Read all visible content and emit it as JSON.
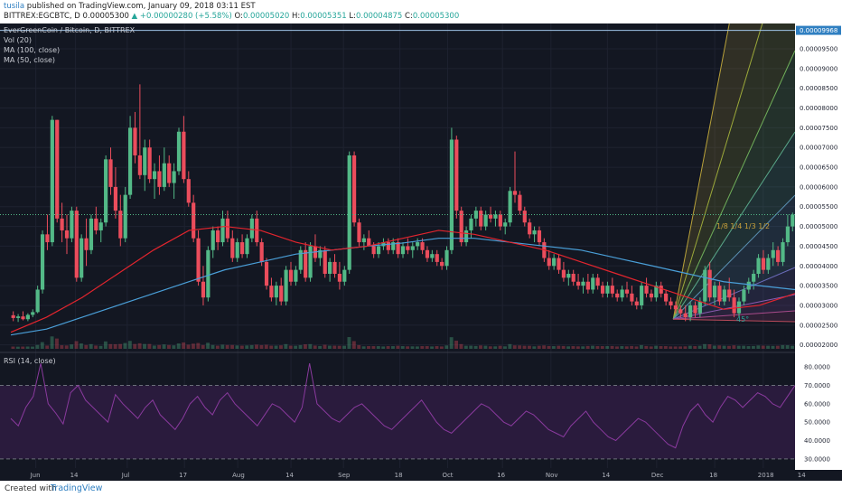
{
  "header": {
    "user": "tusila",
    "published": "published on TradingView.com, January 09, 2018 03:11 EST",
    "symbol": "BITTREX:EGCBTC, D",
    "open_value": "0.00005300",
    "change": "▲ +0.00000280 (+5.58%)",
    "o_label": "O:",
    "o_value": "0.00005020",
    "h_label": "H:",
    "h_value": "0.00005351",
    "l_label": "L:",
    "l_value": "0.00004875",
    "c_label": "C:",
    "c_value": "0.00005300"
  },
  "legend": {
    "pair": "EverGreenCoin / Bitcoin, D, BITTREX",
    "vol": "Vol (20)",
    "ma100": "MA (100, close)",
    "ma50": "MA (50, close)",
    "rsi": "RSI (14, close)"
  },
  "fan_labels": {
    "ratios": "1/8 1/4 1/3 1/2",
    "angle": "45°"
  },
  "footer": {
    "created": "Created with",
    "brand": "TradingView"
  },
  "colors": {
    "background": "#131722",
    "up": "#53b987",
    "down": "#eb4d5c",
    "ma100": "#4a9fd8",
    "ma50": "#e3252e",
    "rsi": "#8a3a9e",
    "volume_ma": "#c8c46c",
    "price_label": "#2f7fc1"
  },
  "chart_data": {
    "type": "candlestick",
    "title": "EverGreenCoin / Bitcoin, D, BITTREX",
    "price_axis": {
      "min": 1.9e-05,
      "max": 0.0001005,
      "ticks": [
        "0.00009500",
        "0.00009000",
        "0.00008500",
        "0.00008000",
        "0.00007500",
        "0.00007000",
        "0.00006500",
        "0.00006000",
        "0.00005500",
        "0.00005000",
        "0.00004500",
        "0.00004000",
        "0.00003500",
        "0.00003000",
        "0.00002500",
        "0.00002000"
      ],
      "tick_values": [
        9.5e-05,
        9e-05,
        8.5e-05,
        8e-05,
        7.5e-05,
        7e-05,
        6.5e-05,
        6e-05,
        5.5e-05,
        5e-05,
        4.5e-05,
        4e-05,
        3.5e-05,
        3e-05,
        2.5e-05,
        2e-05
      ]
    },
    "price_marker": {
      "label": "0.00009968",
      "value": 9.968e-05
    },
    "last_price": 5.3e-05,
    "rsi_axis": {
      "min": 25,
      "max": 85,
      "ticks": [
        "80.0000",
        "70.0000",
        "60.0000",
        "50.0000",
        "40.0000",
        "30.0000"
      ],
      "tick_values": [
        80,
        70,
        60,
        50,
        40,
        30
      ],
      "bands": [
        70,
        30
      ]
    },
    "time_axis": [
      "Jun",
      "14",
      "Jul",
      "17",
      "Aug",
      "14",
      "Sep",
      "18",
      "Oct",
      "16",
      "Nov",
      "14",
      "Dec",
      "18",
      "2018",
      "14"
    ],
    "time_positions": [
      0.045,
      0.095,
      0.16,
      0.232,
      0.299,
      0.366,
      0.432,
      0.503,
      0.563,
      0.632,
      0.693,
      0.764,
      0.826,
      0.899,
      0.96,
      1.01
    ],
    "candles": [
      [
        2.75e-05,
        2.85e-05,
        2.6e-05,
        2.68e-05
      ],
      [
        2.68e-05,
        2.78e-05,
        2.58e-05,
        2.72e-05
      ],
      [
        2.72e-05,
        2.85e-05,
        2.62e-05,
        2.65e-05
      ],
      [
        2.65e-05,
        2.8e-05,
        2.6e-05,
        2.76e-05
      ],
      [
        2.76e-05,
        2.9e-05,
        2.7e-05,
        2.83e-05
      ],
      [
        2.83e-05,
        3.5e-05,
        2.8e-05,
        3.4e-05
      ],
      [
        3.4e-05,
        4.9e-05,
        3.3e-05,
        4.8e-05
      ],
      [
        4.8e-05,
        5.3e-05,
        4.4e-05,
        4.6e-05
      ],
      [
        4.6e-05,
        7.8e-05,
        4.5e-05,
        7.7e-05
      ],
      [
        7.7e-05,
        7.7e-05,
        5.1e-05,
        5.2e-05
      ],
      [
        5.2e-05,
        5.6e-05,
        4.6e-05,
        4.9e-05
      ],
      [
        4.9e-05,
        5.3e-05,
        4.3e-05,
        4.7e-05
      ],
      [
        4.7e-05,
        5.5e-05,
        4.6e-05,
        5.4e-05
      ],
      [
        5.4e-05,
        5.5e-05,
        3.6e-05,
        3.7e-05
      ],
      [
        3.7e-05,
        4.8e-05,
        3.6e-05,
        4.7e-05
      ],
      [
        4.7e-05,
        5.2e-05,
        4e-05,
        4.4e-05
      ],
      [
        4.4e-05,
        5.3e-05,
        4.3e-05,
        5.2e-05
      ],
      [
        5.2e-05,
        5.5e-05,
        4.8e-05,
        4.9e-05
      ],
      [
        4.9e-05,
        5.2e-05,
        4.6e-05,
        5.1e-05
      ],
      [
        5.1e-05,
        6.8e-05,
        5e-05,
        6.7e-05
      ],
      [
        6.7e-05,
        7e-05,
        5.8e-05,
        6e-05
      ],
      [
        6e-05,
        6.5e-05,
        5.2e-05,
        5.4e-05
      ],
      [
        5.4e-05,
        5.8e-05,
        4.5e-05,
        4.7e-05
      ],
      [
        4.7e-05,
        6e-05,
        4.6e-05,
        5.8e-05
      ],
      [
        5.8e-05,
        7.8e-05,
        5.7e-05,
        7.5e-05
      ],
      [
        7.5e-05,
        7.9e-05,
        6.6e-05,
        6.8e-05
      ],
      [
        6.8e-05,
        8.6e-05,
        6.2e-05,
        6.3e-05
      ],
      [
        6.3e-05,
        7.2e-05,
        5.9e-05,
        7e-05
      ],
      [
        7e-05,
        7.2e-05,
        6.1e-05,
        6.2e-05
      ],
      [
        6.2e-05,
        6.6e-05,
        5.7e-05,
        6.4e-05
      ],
      [
        6.4e-05,
        6.8e-05,
        5.8e-05,
        6e-05
      ],
      [
        6e-05,
        7e-05,
        5.9e-05,
        6.6e-05
      ],
      [
        6.6e-05,
        6.8e-05,
        6e-05,
        6.1e-05
      ],
      [
        6.1e-05,
        6.6e-05,
        5.7e-05,
        6.4e-05
      ],
      [
        6.4e-05,
        7.5e-05,
        6.3e-05,
        7.4e-05
      ],
      [
        7.4e-05,
        7.8e-05,
        6.1e-05,
        6.2e-05
      ],
      [
        6.2e-05,
        6.4e-05,
        5.5e-05,
        5.6e-05
      ],
      [
        5.6e-05,
        5.8e-05,
        4.6e-05,
        4.7e-05
      ],
      [
        4.7e-05,
        4.9e-05,
        3.5e-05,
        3.6e-05
      ],
      [
        3.6e-05,
        4e-05,
        3e-05,
        3.2e-05
      ],
      [
        3.2e-05,
        4.5e-05,
        3.1e-05,
        4.4e-05
      ],
      [
        4.4e-05,
        5e-05,
        4.2e-05,
        4.9e-05
      ],
      [
        4.9e-05,
        5e-05,
        4.4e-05,
        4.6e-05
      ],
      [
        4.6e-05,
        5.4e-05,
        4.5e-05,
        5.2e-05
      ],
      [
        5.2e-05,
        5.4e-05,
        4.6e-05,
        4.7e-05
      ],
      [
        4.7e-05,
        4.9e-05,
        4.1e-05,
        4.2e-05
      ],
      [
        4.2e-05,
        4.7e-05,
        4.1e-05,
        4.6e-05
      ],
      [
        4.6e-05,
        4.8e-05,
        4.2e-05,
        4.3e-05
      ],
      [
        4.3e-05,
        4.8e-05,
        4.2e-05,
        4.7e-05
      ],
      [
        4.7e-05,
        5.3e-05,
        4.6e-05,
        5.2e-05
      ],
      [
        5.2e-05,
        5.4e-05,
        4.5e-05,
        4.6e-05
      ],
      [
        4.6e-05,
        4.7e-05,
        4e-05,
        4.1e-05
      ],
      [
        4.1e-05,
        4.2e-05,
        3.4e-05,
        3.5e-05
      ],
      [
        3.5e-05,
        3.7e-05,
        3.1e-05,
        3.2e-05
      ],
      [
        3.2e-05,
        3.6e-05,
        3e-05,
        3.5e-05
      ],
      [
        3.5e-05,
        3.7e-05,
        3e-05,
        3.1e-05
      ],
      [
        3.1e-05,
        4e-05,
        3e-05,
        3.9e-05
      ],
      [
        3.9e-05,
        4.1e-05,
        3.5e-05,
        3.6e-05
      ],
      [
        3.6e-05,
        4e-05,
        3.5e-05,
        3.9e-05
      ],
      [
        3.9e-05,
        4.5e-05,
        3.8e-05,
        4.4e-05
      ],
      [
        4.4e-05,
        4.6e-05,
        3.6e-05,
        3.7e-05
      ],
      [
        3.7e-05,
        4.6e-05,
        3.6e-05,
        4.5e-05
      ],
      [
        4.5e-05,
        4.8e-05,
        4.1e-05,
        4.2e-05
      ],
      [
        4.2e-05,
        4.5e-05,
        4e-05,
        4.4e-05
      ],
      [
        4.4e-05,
        4.5e-05,
        3.7e-05,
        3.8e-05
      ],
      [
        3.8e-05,
        4.2e-05,
        3.6e-05,
        4.1e-05
      ],
      [
        4.1e-05,
        4.3e-05,
        3.7e-05,
        3.8e-05
      ],
      [
        3.8e-05,
        4.1e-05,
        3.4e-05,
        3.6e-05
      ],
      [
        3.6e-05,
        4e-05,
        3.5e-05,
        3.9e-05
      ],
      [
        3.9e-05,
        6.9e-05,
        3.8e-05,
        6.8e-05
      ],
      [
        6.8e-05,
        6.9e-05,
        5e-05,
        5.1e-05
      ],
      [
        5.1e-05,
        5.2e-05,
        4.5e-05,
        4.6e-05
      ],
      [
        4.6e-05,
        4.8e-05,
        4.4e-05,
        4.7e-05
      ],
      [
        4.7e-05,
        4.9e-05,
        4.5e-05,
        4.5e-05
      ],
      [
        4.5e-05,
        4.6e-05,
        4.2e-05,
        4.3e-05
      ],
      [
        4.3e-05,
        4.6e-05,
        4.2e-05,
        4.5e-05
      ],
      [
        4.5e-05,
        4.7e-05,
        4.4e-05,
        4.6e-05
      ],
      [
        4.6e-05,
        4.7e-05,
        4.3e-05,
        4.4e-05
      ],
      [
        4.4e-05,
        4.7e-05,
        4.3e-05,
        4.6e-05
      ],
      [
        4.6e-05,
        4.7e-05,
        4.2e-05,
        4.3e-05
      ],
      [
        4.3e-05,
        4.6e-05,
        4.2e-05,
        4.5e-05
      ],
      [
        4.5e-05,
        4.7e-05,
        4.3e-05,
        4.4e-05
      ],
      [
        4.4e-05,
        4.6e-05,
        4.2e-05,
        4.5e-05
      ],
      [
        4.5e-05,
        4.7e-05,
        4.4e-05,
        4.6e-05
      ],
      [
        4.6e-05,
        4.7e-05,
        4.3e-05,
        4.4e-05
      ],
      [
        4.4e-05,
        4.5e-05,
        4.1e-05,
        4.2e-05
      ],
      [
        4.2e-05,
        4.4e-05,
        4.1e-05,
        4.3e-05
      ],
      [
        4.3e-05,
        4.4e-05,
        4e-05,
        4.1e-05
      ],
      [
        4.1e-05,
        4.2e-05,
        3.9e-05,
        4e-05
      ],
      [
        4e-05,
        4.5e-05,
        3.9e-05,
        4.4e-05
      ],
      [
        4.4e-05,
        7.5e-05,
        4.3e-05,
        7.2e-05
      ],
      [
        7.2e-05,
        7.3e-05,
        5.2e-05,
        5.4e-05
      ],
      [
        5.4e-05,
        5.5e-05,
        4.5e-05,
        4.6e-05
      ],
      [
        4.6e-05,
        5e-05,
        4.5e-05,
        4.9e-05
      ],
      [
        4.9e-05,
        5.3e-05,
        4.7e-05,
        5.2e-05
      ],
      [
        5.2e-05,
        5.5e-05,
        5e-05,
        5.4e-05
      ],
      [
        5.4e-05,
        5.5e-05,
        4.9e-05,
        5e-05
      ],
      [
        5e-05,
        5.4e-05,
        4.9e-05,
        5.3e-05
      ],
      [
        5.3e-05,
        5.5e-05,
        5.1e-05,
        5.2e-05
      ],
      [
        5.2e-05,
        5.4e-05,
        5e-05,
        5.3e-05
      ],
      [
        5.3e-05,
        5.4e-05,
        4.9e-05,
        5e-05
      ],
      [
        5e-05,
        5.2e-05,
        4.8e-05,
        5.1e-05
      ],
      [
        5.1e-05,
        6e-05,
        5e-05,
        5.9e-05
      ],
      [
        5.9e-05,
        6.9e-05,
        5.6e-05,
        5.8e-05
      ],
      [
        5.8e-05,
        5.9e-05,
        5.3e-05,
        5.4e-05
      ],
      [
        5.4e-05,
        5.5e-05,
        5e-05,
        5.1e-05
      ],
      [
        5.1e-05,
        5.2e-05,
        4.7e-05,
        4.8e-05
      ],
      [
        4.8e-05,
        5e-05,
        4.6e-05,
        4.9e-05
      ],
      [
        4.9e-05,
        5e-05,
        4.5e-05,
        4.6e-05
      ],
      [
        4.6e-05,
        4.7e-05,
        4.1e-05,
        4.2e-05
      ],
      [
        4.2e-05,
        4.4e-05,
        3.9e-05,
        4e-05
      ],
      [
        4e-05,
        4.3e-05,
        3.9e-05,
        4.2e-05
      ],
      [
        4.2e-05,
        4.3e-05,
        3.8e-05,
        3.9e-05
      ],
      [
        3.9e-05,
        4.1e-05,
        3.6e-05,
        3.7e-05
      ],
      [
        3.7e-05,
        3.9e-05,
        3.5e-05,
        3.8e-05
      ],
      [
        3.8e-05,
        3.9e-05,
        3.5e-05,
        3.6e-05
      ],
      [
        3.6e-05,
        3.8e-05,
        3.4e-05,
        3.5e-05
      ],
      [
        3.5e-05,
        3.7e-05,
        3.3e-05,
        3.6e-05
      ],
      [
        3.6e-05,
        3.8e-05,
        3.3e-05,
        3.4e-05
      ],
      [
        3.4e-05,
        3.8e-05,
        3.3e-05,
        3.7e-05
      ],
      [
        3.7e-05,
        3.8e-05,
        3.4e-05,
        3.5e-05
      ],
      [
        3.5e-05,
        3.6e-05,
        3.2e-05,
        3.3e-05
      ],
      [
        3.3e-05,
        3.6e-05,
        3.2e-05,
        3.5e-05
      ],
      [
        3.5e-05,
        3.7e-05,
        3.2e-05,
        3.3e-05
      ],
      [
        3.3e-05,
        3.4e-05,
        3.1e-05,
        3.2e-05
      ],
      [
        3.2e-05,
        3.5e-05,
        3.1e-05,
        3.4e-05
      ],
      [
        3.4e-05,
        3.6e-05,
        3.2e-05,
        3.3e-05
      ],
      [
        3.3e-05,
        3.5e-05,
        3e-05,
        3.1e-05
      ],
      [
        3.1e-05,
        3.2e-05,
        2.9e-05,
        3e-05
      ],
      [
        3e-05,
        3.6e-05,
        2.9e-05,
        3.5e-05
      ],
      [
        3.5e-05,
        3.7e-05,
        3.2e-05,
        3.3e-05
      ],
      [
        3.3e-05,
        3.4e-05,
        3.1e-05,
        3.2e-05
      ],
      [
        3.2e-05,
        3.6e-05,
        3.1e-05,
        3.5e-05
      ],
      [
        3.5e-05,
        3.6e-05,
        3.2e-05,
        3.3e-05
      ],
      [
        3.3e-05,
        3.4e-05,
        3e-05,
        3.1e-05
      ],
      [
        3.1e-05,
        3.2e-05,
        2.9e-05,
        3e-05
      ],
      [
        3e-05,
        3.1e-05,
        2.8e-05,
        2.9e-05
      ],
      [
        2.9e-05,
        3e-05,
        2.7e-05,
        2.8e-05
      ],
      [
        2.8e-05,
        3e-05,
        2.6e-05,
        2.7e-05
      ],
      [
        2.7e-05,
        3.1e-05,
        2.6e-05,
        3e-05
      ],
      [
        3e-05,
        3.1e-05,
        2.7e-05,
        2.8e-05
      ],
      [
        2.8e-05,
        3.2e-05,
        2.7e-05,
        3.1e-05
      ],
      [
        3.1e-05,
        4e-05,
        3e-05,
        3.9e-05
      ],
      [
        3.9e-05,
        4.1e-05,
        3.1e-05,
        3.2e-05
      ],
      [
        3.2e-05,
        3.6e-05,
        3e-05,
        3.5e-05
      ],
      [
        3.5e-05,
        3.6e-05,
        3e-05,
        3.1e-05
      ],
      [
        3.1e-05,
        3.5e-05,
        3e-05,
        3.4e-05
      ],
      [
        3.4e-05,
        3.7e-05,
        3.1e-05,
        3.2e-05
      ],
      [
        3.2e-05,
        3.4e-05,
        2.7e-05,
        2.8e-05
      ],
      [
        2.8e-05,
        3.2e-05,
        2.7e-05,
        3.1e-05
      ],
      [
        3.1e-05,
        3.5e-05,
        3e-05,
        3.4e-05
      ],
      [
        3.4e-05,
        3.7e-05,
        3.3e-05,
        3.6e-05
      ],
      [
        3.6e-05,
        3.9e-05,
        3.4e-05,
        3.8e-05
      ],
      [
        3.8e-05,
        4.3e-05,
        3.7e-05,
        4.2e-05
      ],
      [
        4.2e-05,
        4.4e-05,
        3.8e-05,
        3.9e-05
      ],
      [
        3.9e-05,
        4.3e-05,
        3.8e-05,
        4.2e-05
      ],
      [
        4.2e-05,
        4.6e-05,
        4e-05,
        4.4e-05
      ],
      [
        4.4e-05,
        4.5e-05,
        4e-05,
        4.1e-05
      ],
      [
        4.1e-05,
        4.7e-05,
        4e-05,
        4.6e-05
      ],
      [
        4.6e-05,
        5.3e-05,
        4.5e-05,
        5e-05
      ],
      [
        5e-05,
        5.35e-05,
        4.875e-05,
        5.3e-05
      ]
    ],
    "ma100": [
      2.25e-05,
      2.4e-05,
      2.7e-05,
      3e-05,
      3.3e-05,
      3.6e-05,
      3.9e-05,
      4.1e-05,
      4.3e-05,
      4.4e-05,
      4.5e-05,
      4.58e-05,
      4.7e-05,
      4.7e-05,
      4.6e-05,
      4.5e-05,
      4.4e-05,
      4.2e-05,
      4e-05,
      3.8e-05,
      3.6e-05,
      3.5e-05,
      3.4e-05
    ],
    "ma50": [
      2.32e-05,
      2.7e-05,
      3.2e-05,
      3.8e-05,
      4.4e-05,
      4.9e-05,
      5e-05,
      4.9e-05,
      4.6e-05,
      4.4e-05,
      4.5e-05,
      4.7e-05,
      4.9e-05,
      4.8e-05,
      4.6e-05,
      4.4e-05,
      4.1e-05,
      3.8e-05,
      3.5e-05,
      3.2e-05,
      2.9e-05,
      3e-05,
      3.3e-05
    ],
    "rsi": [
      52,
      48,
      58,
      64,
      82,
      60,
      55,
      49,
      66,
      70,
      62,
      58,
      54,
      50,
      65,
      60,
      56,
      52,
      58,
      62,
      54,
      50,
      46,
      52,
      60,
      64,
      58,
      54,
      62,
      66,
      60,
      56,
      52,
      48,
      54,
      60,
      58,
      54,
      50,
      58,
      82,
      60,
      56,
      52,
      50,
      54,
      58,
      60,
      56,
      52,
      48,
      46,
      50,
      54,
      58,
      62,
      56,
      50,
      46,
      44,
      48,
      52,
      56,
      60,
      58,
      54,
      50,
      48,
      52,
      56,
      54,
      50,
      46,
      44,
      42,
      48,
      52,
      56,
      50,
      46,
      42,
      40,
      44,
      48,
      52,
      50,
      46,
      42,
      38,
      36,
      48,
      56,
      60,
      54,
      50,
      58,
      64,
      62,
      58,
      62,
      66,
      64,
      60,
      58,
      64,
      70
    ]
  }
}
